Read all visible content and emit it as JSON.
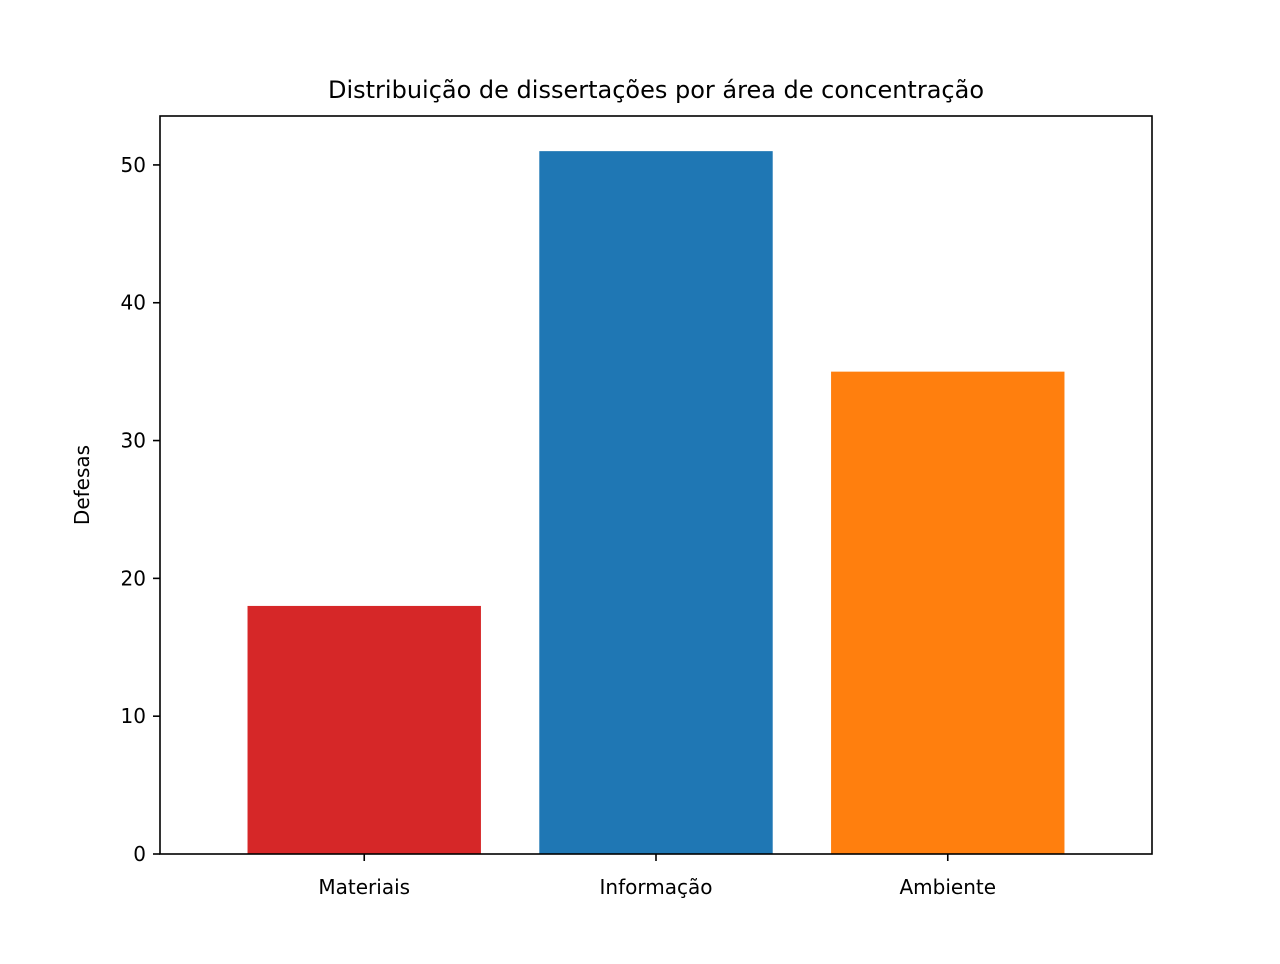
{
  "chart_data": {
    "type": "bar",
    "title": "Distribuição de dissertações por área de concentração",
    "ylabel": "Defesas",
    "xlabel": "",
    "categories": [
      "Materiais",
      "Informação",
      "Ambiente"
    ],
    "values": [
      18,
      51,
      35
    ],
    "colors": [
      "#d62728",
      "#1f77b4",
      "#ff7f0e"
    ],
    "ylim": [
      0,
      53.55
    ],
    "yticks": [
      0,
      10,
      20,
      30,
      40,
      50
    ],
    "ytick_labels": [
      "0",
      "10",
      "20",
      "30",
      "40",
      "50"
    ],
    "grid": false,
    "legend": "none"
  }
}
